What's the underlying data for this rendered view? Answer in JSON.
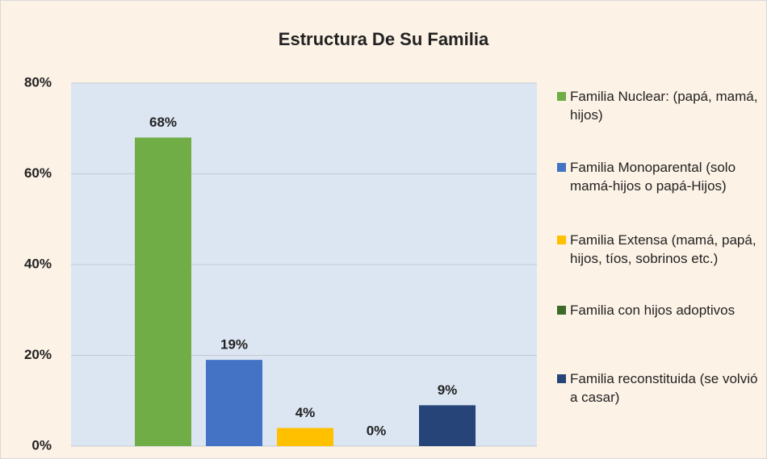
{
  "chart_data": {
    "type": "bar",
    "title": "Estructura De Su Familia",
    "series": [
      {
        "name": "Familia Nuclear: (papá, mamá, hijos)",
        "color": "#70ad47",
        "values": [
          68
        ],
        "value_labels": [
          "68%"
        ]
      },
      {
        "name": "Familia Monoparental (solo mamá-hijos o papá-Hijos)",
        "color": "#4472c4",
        "values": [
          19
        ],
        "value_labels": [
          "19%"
        ]
      },
      {
        "name": "Familia Extensa (mamá, papá, hijos, tíos, sobrinos etc.)",
        "color": "#ffc000",
        "values": [
          4
        ],
        "value_labels": [
          "4%"
        ]
      },
      {
        "name": "Familia con hijos adoptivos",
        "color": "#3b6a2a",
        "values": [
          0
        ],
        "value_labels": [
          "0%"
        ]
      },
      {
        "name": "Familia reconstituida (se volvió a casar)",
        "color": "#264478",
        "values": [
          9
        ],
        "value_labels": [
          "9%"
        ]
      }
    ],
    "ylim": [
      0,
      80
    ],
    "yticks": [
      {
        "value": 0,
        "label": "0%"
      },
      {
        "value": 20,
        "label": "20%"
      },
      {
        "value": 40,
        "label": "40%"
      },
      {
        "value": 60,
        "label": "60%"
      },
      {
        "value": 80,
        "label": "80%"
      }
    ],
    "grid": true,
    "legend": "right"
  }
}
